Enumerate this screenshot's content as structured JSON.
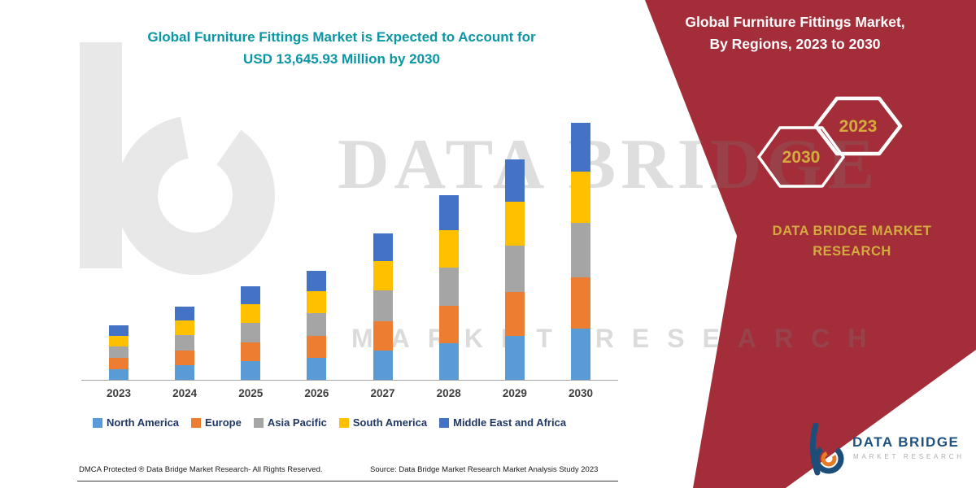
{
  "header": {
    "title_line1": "Global Furniture Fittings Market is Expected to Account for",
    "title_line2": "USD 13,645.93 Million by 2030"
  },
  "right_panel": {
    "title": "Global Furniture Fittings Market, By Regions, 2023 to 2030",
    "hexagons": [
      {
        "label": "2030"
      },
      {
        "label": "2023"
      }
    ],
    "brand_text": "DATA BRIDGE MARKET RESEARCH",
    "bg_color": "#a32d38",
    "gold_color": "#d4ab3f"
  },
  "watermark": {
    "line1": "DATA BRIDGE",
    "line2": "MARKET RESEARCH"
  },
  "chart_data": {
    "type": "bar",
    "stacked": true,
    "title": "Global Furniture Fittings Market is Expected to Account for USD 13,645.93 Million by 2030",
    "unit": "USD Million",
    "categories": [
      "2023",
      "2024",
      "2025",
      "2026",
      "2027",
      "2028",
      "2029",
      "2030"
    ],
    "series": [
      {
        "name": "North America",
        "color": "#5B9BD5",
        "values": [
          580,
          780,
          990,
          1160,
          1560,
          1960,
          2340,
          2729
        ]
      },
      {
        "name": "Europe",
        "color": "#ED7D31",
        "values": [
          580,
          780,
          990,
          1160,
          1560,
          1960,
          2340,
          2729
        ]
      },
      {
        "name": "Asia Pacific",
        "color": "#A5A5A5",
        "values": [
          609,
          819,
          1040,
          1218,
          1638,
          2058,
          2457,
          2866
        ]
      },
      {
        "name": "South America",
        "color": "#FFC000",
        "values": [
          580,
          780,
          990,
          1160,
          1560,
          1960,
          2340,
          2729
        ]
      },
      {
        "name": "Middle East and Africa",
        "color": "#4472C4",
        "values": [
          551,
          741,
          940,
          1102,
          1482,
          1862,
          2223,
          2594
        ]
      }
    ],
    "totals_estimated": [
      2900,
      3900,
      4950,
      5800,
      7800,
      9800,
      11700,
      13645.93
    ],
    "ylim": [
      0,
      14000
    ],
    "grid": false,
    "legend_position": "bottom"
  },
  "footer": {
    "left": "DMCA Protected ® Data Bridge Market Research-  All Rights Reserved.",
    "source": "Source: Data Bridge Market Research  Market Analysis Study 2023"
  },
  "logo": {
    "name": "DATA BRIDGE",
    "subtitle": "MARKET RESEARCH"
  }
}
